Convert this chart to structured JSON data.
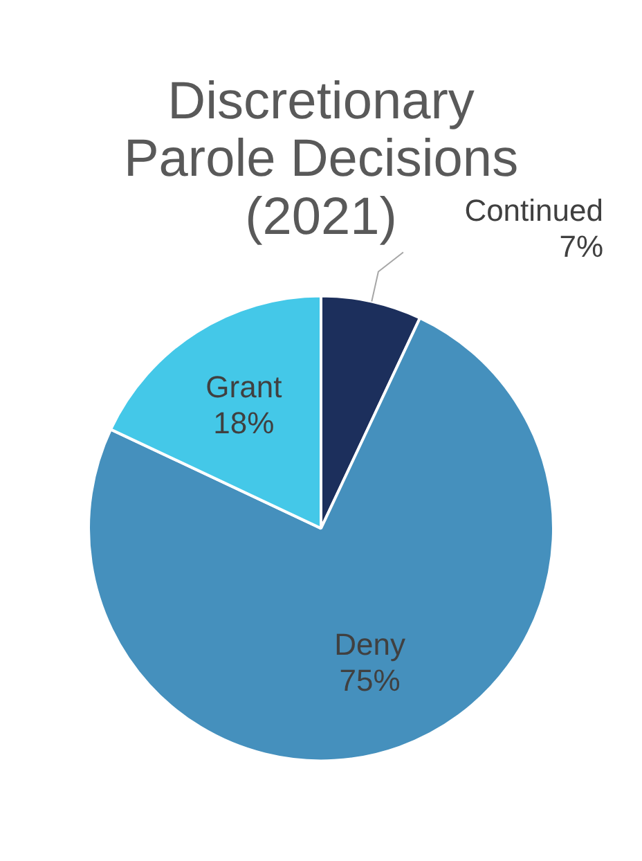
{
  "chart_data": {
    "type": "pie",
    "title": "Discretionary Parole Decisions (2021)",
    "categories": [
      "Continued",
      "Deny",
      "Grant"
    ],
    "values": [
      7,
      75,
      18
    ],
    "colors": [
      "#1c2f5c",
      "#4590bd",
      "#44c8e8"
    ],
    "value_labels": [
      "7%",
      "75%",
      "18%"
    ],
    "legend": false
  }
}
